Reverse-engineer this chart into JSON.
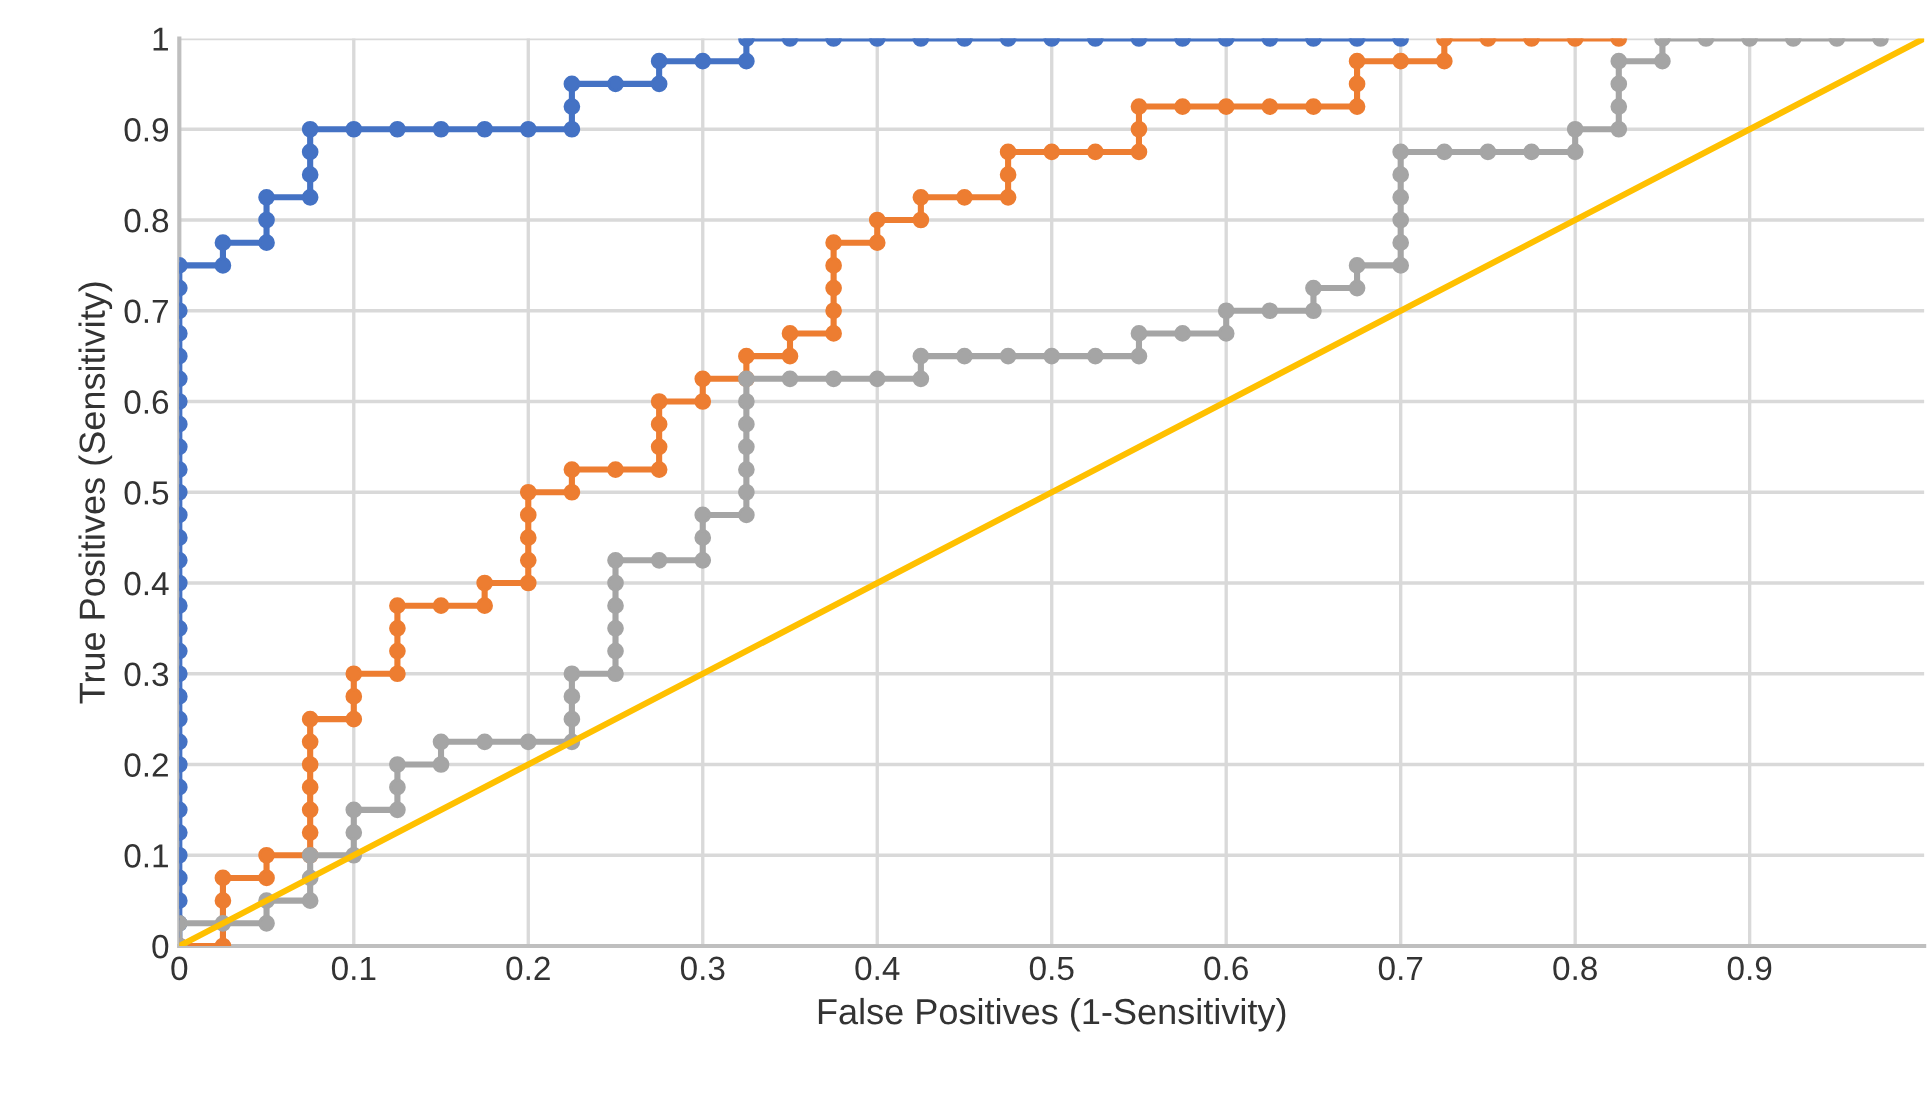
{
  "chart_data": {
    "type": "line",
    "xlabel": "False Positives (1-Sensitivity)",
    "ylabel": "True Positives (Sensitivity)",
    "xlim": [
      0,
      1
    ],
    "ylim": [
      0,
      1
    ],
    "xticks": [
      0,
      0.1,
      0.2,
      0.3,
      0.4,
      0.5,
      0.6,
      0.7,
      0.8,
      0.9
    ],
    "yticks": [
      0,
      0.1,
      0.2,
      0.3,
      0.4,
      0.5,
      0.6,
      0.7,
      0.8,
      0.9,
      1
    ],
    "grid": true,
    "legend": false,
    "marker": "circle",
    "line_style": "solid",
    "series": [
      {
        "color": "#4472c4",
        "x": [
          0,
          0,
          0,
          0,
          0,
          0,
          0,
          0,
          0,
          0,
          0,
          0,
          0,
          0,
          0,
          0,
          0,
          0,
          0,
          0,
          0,
          0,
          0,
          0,
          0,
          0,
          0,
          0,
          0,
          0,
          0,
          0.025,
          0.025,
          0.05,
          0.05,
          0.05,
          0.075,
          0.075,
          0.075,
          0.075,
          0.1,
          0.125,
          0.15,
          0.175,
          0.2,
          0.225,
          0.225,
          0.225,
          0.25,
          0.275,
          0.275,
          0.3,
          0.325,
          0.325,
          0.35,
          0.375,
          0.4,
          0.425,
          0.45,
          0.475,
          0.5,
          0.525,
          0.55,
          0.575,
          0.6,
          0.625,
          0.65,
          0.675,
          0.7
        ],
        "values": [
          0,
          0.025,
          0.05,
          0.075,
          0.1,
          0.125,
          0.15,
          0.175,
          0.2,
          0.225,
          0.25,
          0.275,
          0.3,
          0.325,
          0.35,
          0.375,
          0.4,
          0.425,
          0.45,
          0.475,
          0.5,
          0.525,
          0.55,
          0.575,
          0.6,
          0.625,
          0.65,
          0.675,
          0.7,
          0.725,
          0.75,
          0.75,
          0.775,
          0.775,
          0.8,
          0.825,
          0.825,
          0.85,
          0.875,
          0.9,
          0.9,
          0.9,
          0.9,
          0.9,
          0.9,
          0.9,
          0.925,
          0.95,
          0.95,
          0.95,
          0.975,
          0.975,
          0.975,
          1,
          1,
          1,
          1,
          1,
          1,
          1,
          1,
          1,
          1,
          1,
          1,
          1,
          1,
          1,
          1
        ]
      },
      {
        "color": "#ed7d31",
        "x": [
          0,
          0.025,
          0.025,
          0.025,
          0.05,
          0.05,
          0.075,
          0.075,
          0.075,
          0.075,
          0.075,
          0.075,
          0.075,
          0.1,
          0.1,
          0.1,
          0.125,
          0.125,
          0.125,
          0.125,
          0.15,
          0.175,
          0.175,
          0.2,
          0.2,
          0.2,
          0.2,
          0.2,
          0.225,
          0.225,
          0.25,
          0.275,
          0.275,
          0.275,
          0.275,
          0.3,
          0.3,
          0.325,
          0.325,
          0.35,
          0.35,
          0.375,
          0.375,
          0.375,
          0.375,
          0.375,
          0.4,
          0.4,
          0.425,
          0.425,
          0.45,
          0.475,
          0.475,
          0.475,
          0.5,
          0.525,
          0.55,
          0.55,
          0.55,
          0.575,
          0.6,
          0.625,
          0.65,
          0.675,
          0.675,
          0.675,
          0.7,
          0.725,
          0.725,
          0.75,
          0.775,
          0.8,
          0.825
        ],
        "values": [
          0,
          0,
          0.05,
          0.075,
          0.075,
          0.1,
          0.1,
          0.125,
          0.15,
          0.175,
          0.2,
          0.225,
          0.25,
          0.25,
          0.275,
          0.3,
          0.3,
          0.325,
          0.35,
          0.375,
          0.375,
          0.375,
          0.4,
          0.4,
          0.425,
          0.45,
          0.475,
          0.5,
          0.5,
          0.525,
          0.525,
          0.525,
          0.55,
          0.575,
          0.6,
          0.6,
          0.625,
          0.625,
          0.65,
          0.65,
          0.675,
          0.675,
          0.7,
          0.725,
          0.75,
          0.775,
          0.775,
          0.8,
          0.8,
          0.825,
          0.825,
          0.825,
          0.85,
          0.875,
          0.875,
          0.875,
          0.875,
          0.9,
          0.925,
          0.925,
          0.925,
          0.925,
          0.925,
          0.925,
          0.95,
          0.975,
          0.975,
          0.975,
          1,
          1,
          1,
          1,
          1
        ]
      },
      {
        "color": "#a5a5a5",
        "x": [
          0,
          0,
          0.025,
          0.05,
          0.05,
          0.075,
          0.075,
          0.075,
          0.1,
          0.1,
          0.1,
          0.125,
          0.125,
          0.125,
          0.15,
          0.15,
          0.175,
          0.2,
          0.225,
          0.225,
          0.225,
          0.225,
          0.25,
          0.25,
          0.25,
          0.25,
          0.25,
          0.25,
          0.275,
          0.3,
          0.3,
          0.3,
          0.325,
          0.325,
          0.325,
          0.325,
          0.325,
          0.325,
          0.325,
          0.35,
          0.375,
          0.4,
          0.425,
          0.425,
          0.45,
          0.475,
          0.5,
          0.525,
          0.55,
          0.55,
          0.575,
          0.6,
          0.6,
          0.625,
          0.65,
          0.65,
          0.675,
          0.675,
          0.7,
          0.7,
          0.7,
          0.7,
          0.7,
          0.7,
          0.725,
          0.75,
          0.775,
          0.8,
          0.8,
          0.825,
          0.825,
          0.825,
          0.825,
          0.85,
          0.85,
          0.875,
          0.9,
          0.925,
          0.95,
          0.975
        ],
        "values": [
          0,
          0.025,
          0.025,
          0.025,
          0.05,
          0.05,
          0.075,
          0.1,
          0.1,
          0.125,
          0.15,
          0.15,
          0.175,
          0.2,
          0.2,
          0.225,
          0.225,
          0.225,
          0.225,
          0.25,
          0.275,
          0.3,
          0.3,
          0.325,
          0.35,
          0.375,
          0.4,
          0.425,
          0.425,
          0.425,
          0.45,
          0.475,
          0.475,
          0.5,
          0.525,
          0.55,
          0.575,
          0.6,
          0.625,
          0.625,
          0.625,
          0.625,
          0.625,
          0.65,
          0.65,
          0.65,
          0.65,
          0.65,
          0.65,
          0.675,
          0.675,
          0.675,
          0.7,
          0.7,
          0.7,
          0.725,
          0.725,
          0.75,
          0.75,
          0.775,
          0.8,
          0.825,
          0.85,
          0.875,
          0.875,
          0.875,
          0.875,
          0.875,
          0.9,
          0.9,
          0.925,
          0.95,
          0.975,
          0.975,
          1,
          1,
          1,
          1,
          1,
          1
        ]
      },
      {
        "color": "#ffc000",
        "marker": "none",
        "x": [
          0,
          1
        ],
        "values": [
          0,
          1
        ]
      }
    ]
  }
}
